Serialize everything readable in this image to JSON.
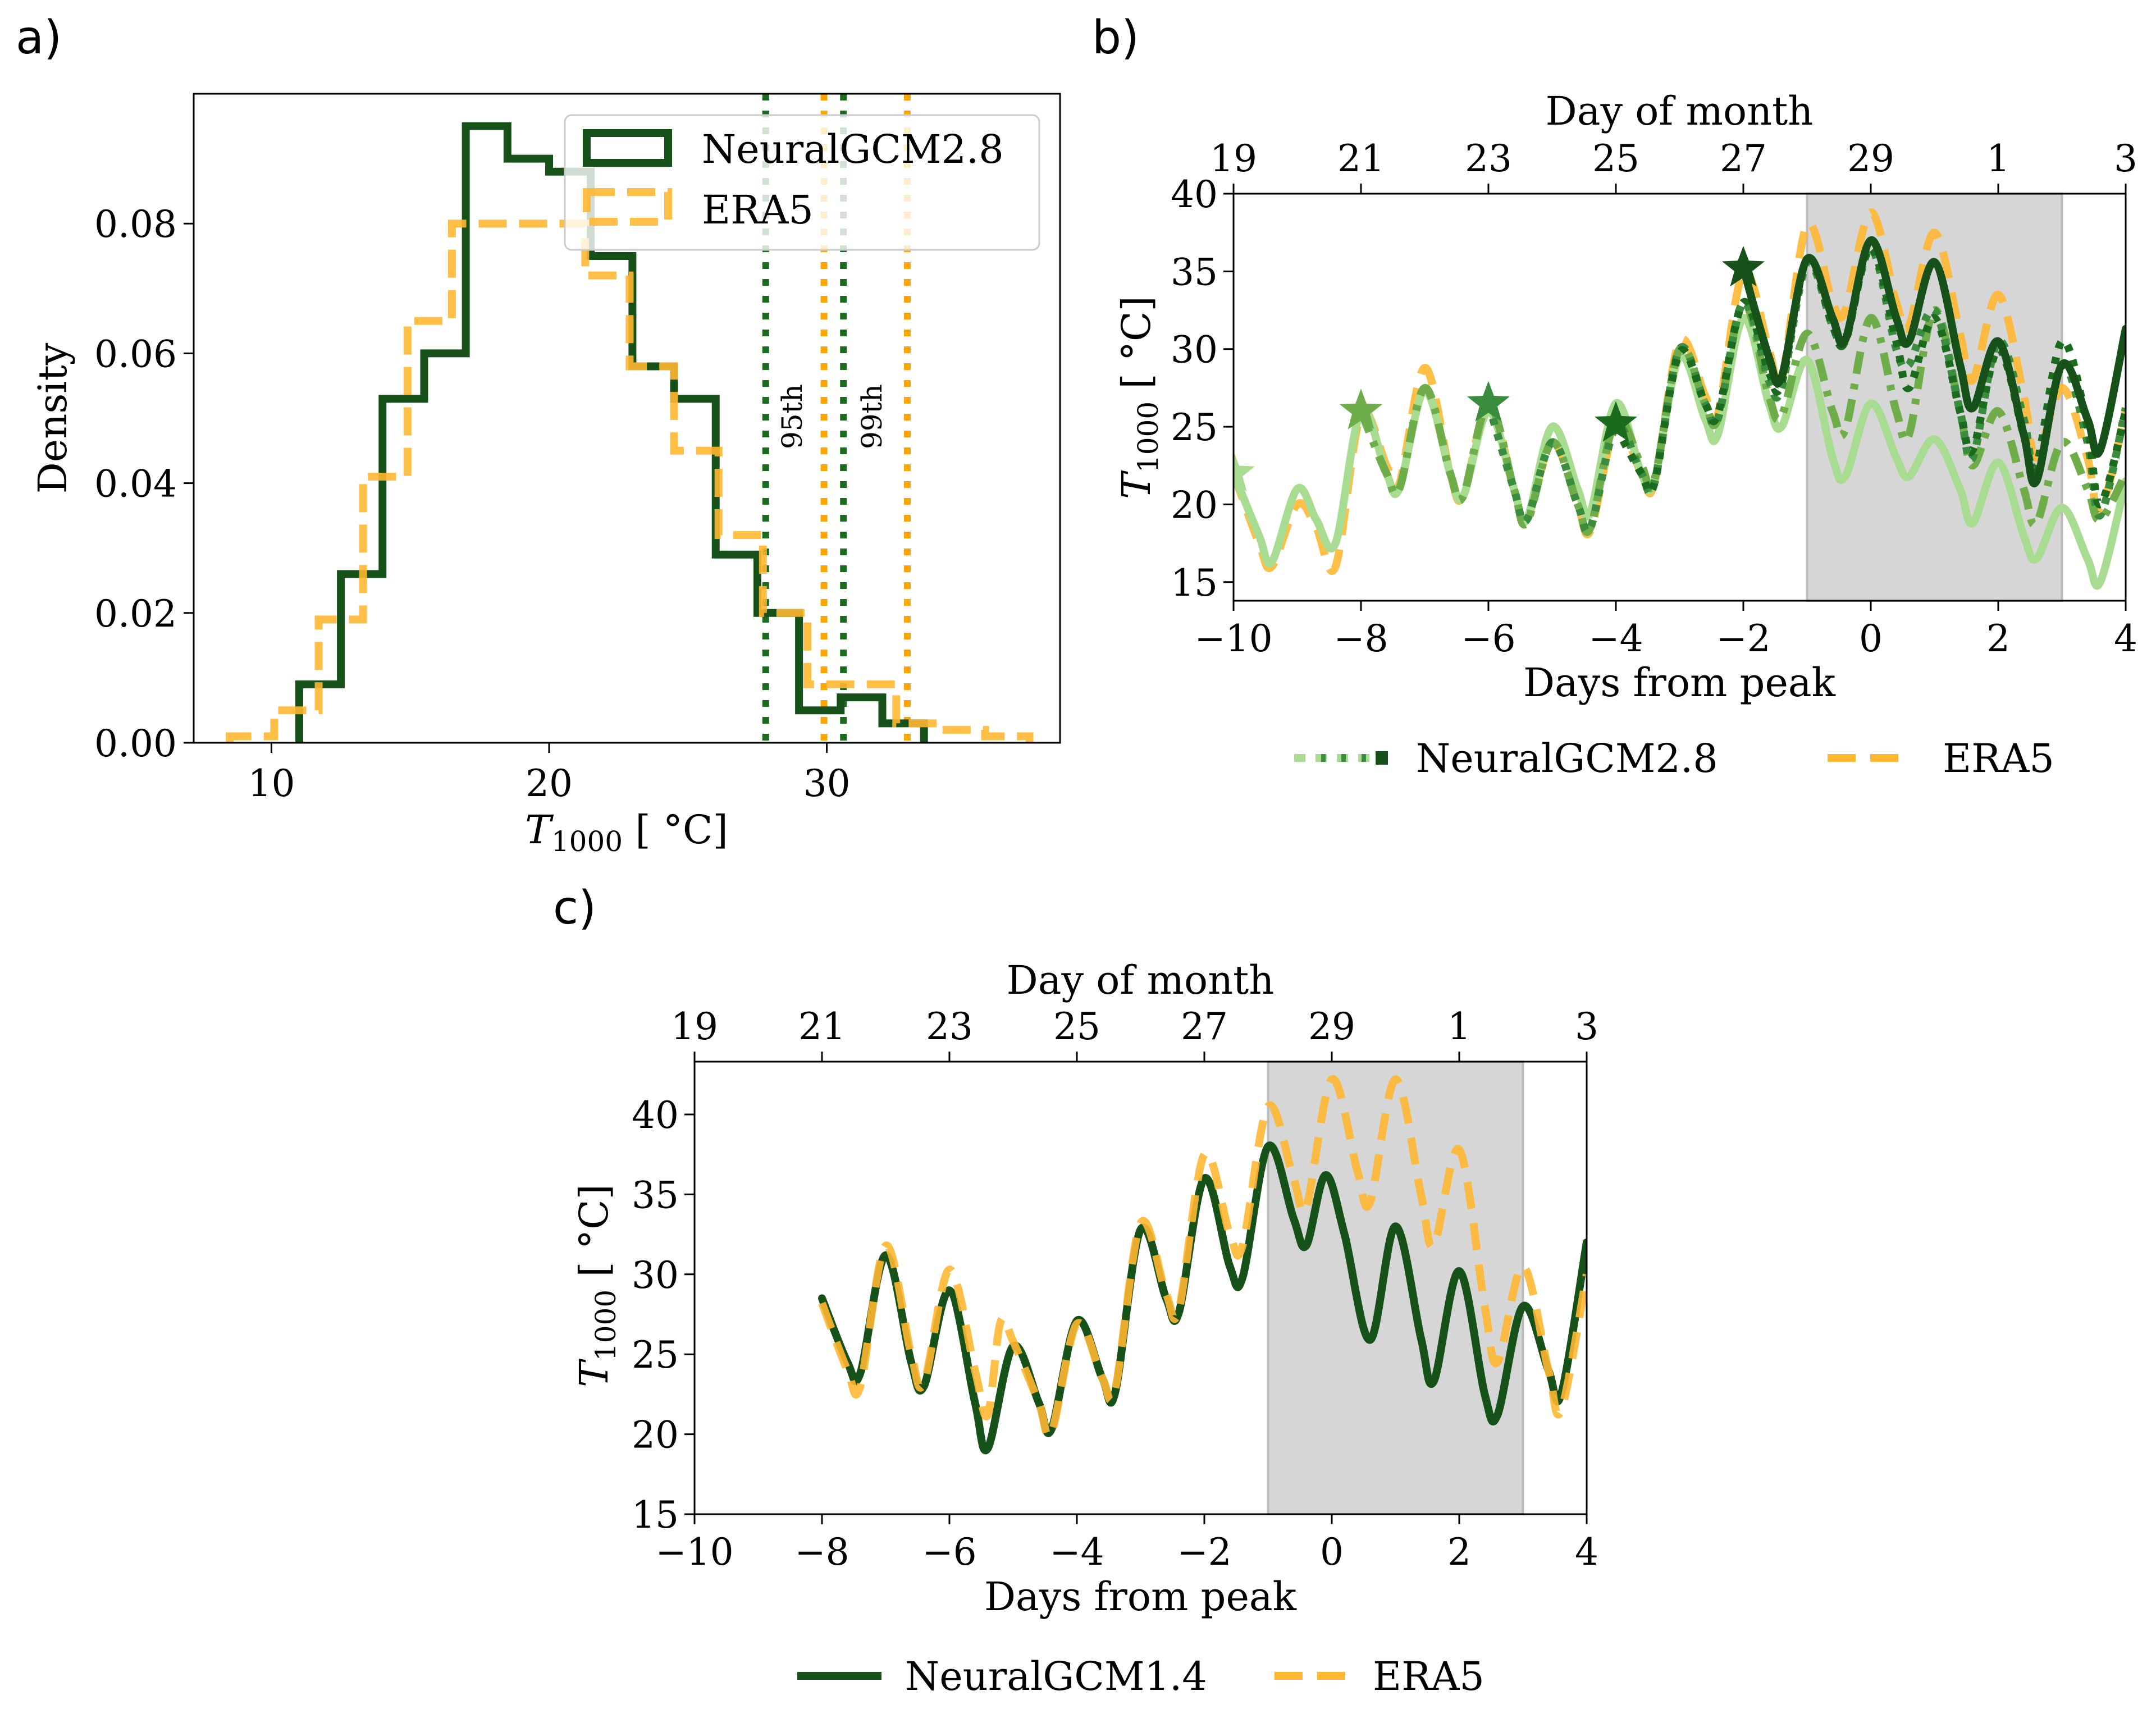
{
  "panel_labels": {
    "a": "a)",
    "b": "b)",
    "c": "c)"
  },
  "colors": {
    "neuralgcm_dark": "#16511a",
    "neuralgcm_mid": "#3a8d3e",
    "neuralgcm_med": "#6fad4a",
    "neuralgcm_light": "#a8dc90",
    "neuralgcm_dotted": "#1b6b1f",
    "era5": "#ffb732",
    "era5_pct": "#ffa500",
    "shade": "#d6d6d6"
  },
  "chart_data": [
    {
      "id": "a",
      "type": "bar",
      "subtype": "step-histogram",
      "title": "",
      "xlabel": "T1000 [°C]",
      "ylabel": "Density",
      "xlim": [
        7.2,
        38.4
      ],
      "ylim": [
        0,
        0.1
      ],
      "xticks": [
        10,
        20,
        30
      ],
      "yticks": [
        0.0,
        0.02,
        0.04,
        0.06,
        0.08
      ],
      "ytick_labels": [
        "0.00",
        "0.02",
        "0.04",
        "0.06",
        "0.08"
      ],
      "legend": {
        "placement": "top-right",
        "entries": [
          "NeuralGCM2.8",
          "ERA5"
        ]
      },
      "series": [
        {
          "name": "NeuralGCM2.8",
          "style": "solid",
          "bin_edges": [
            11.0,
            12.5,
            14.0,
            15.5,
            17.0,
            18.5,
            20.0,
            21.5,
            23.0,
            24.5,
            26.0,
            27.5,
            29.0,
            30.5,
            32.0,
            33.5
          ],
          "values": [
            0.009,
            0.026,
            0.053,
            0.06,
            0.095,
            0.09,
            0.088,
            0.075,
            0.058,
            0.053,
            0.029,
            0.02,
            0.005,
            0.007,
            0.003
          ]
        },
        {
          "name": "ERA5",
          "style": "dashed",
          "bin_edges": [
            8.5,
            10.1,
            11.7,
            13.3,
            14.9,
            16.5,
            18.1,
            19.7,
            21.3,
            22.9,
            24.5,
            26.1,
            27.7,
            29.3,
            30.9,
            32.5,
            34.1,
            35.7,
            37.3
          ],
          "values": [
            0.001,
            0.005,
            0.019,
            0.041,
            0.065,
            0.08,
            0.08,
            0.08,
            0.072,
            0.058,
            0.045,
            0.032,
            0.02,
            0.009,
            0.009,
            0.003,
            0.002,
            0.001
          ]
        }
      ],
      "percentile_lines": [
        {
          "series": "NeuralGCM2.8",
          "label": "95th",
          "x": 27.8
        },
        {
          "series": "NeuralGCM2.8",
          "label": "99th",
          "x": 30.6
        },
        {
          "series": "ERA5",
          "label": "95th",
          "x": 29.9
        },
        {
          "series": "ERA5",
          "label": "99th",
          "x": 32.9
        }
      ],
      "annotations": [
        "95th",
        "99th"
      ]
    },
    {
      "id": "b",
      "type": "line",
      "xlabel": "Days from peak",
      "ylabel": "T1000 [°C]",
      "top_xlabel": "Day of month",
      "xlim": [
        -10,
        4
      ],
      "ylim": [
        13.8,
        40
      ],
      "xticks": [
        -10,
        -8,
        -6,
        -4,
        -2,
        0,
        2,
        4
      ],
      "xtick_labels": [
        "−10",
        "−8",
        "−6",
        "−4",
        "−2",
        "0",
        "2",
        "4"
      ],
      "top_xticks": [
        -10,
        -8,
        -6,
        -4,
        -2,
        0,
        2,
        4
      ],
      "top_xtick_labels": [
        "19",
        "21",
        "23",
        "25",
        "27",
        "29",
        "1",
        "3"
      ],
      "yticks": [
        15,
        20,
        25,
        30,
        35,
        40
      ],
      "shaded_region": [
        -1,
        3
      ],
      "legend": {
        "placement": "bottom",
        "entries": [
          "NeuralGCM2.8",
          "ERA5"
        ]
      },
      "series": [
        {
          "name": "ERA5",
          "style": "dashed",
          "color_key": "era5",
          "x": [
            -10,
            -9.6,
            -9.4,
            -9.0,
            -8.7,
            -8.4,
            -8.0,
            -7.6,
            -7.4,
            -7.0,
            -6.6,
            -6.4,
            -6.0,
            -5.6,
            -5.4,
            -5.0,
            -4.6,
            -4.4,
            -4.0,
            -3.6,
            -3.4,
            -3.0,
            -2.6,
            -2.4,
            -2.0,
            -1.6,
            -1.4,
            -1.0,
            -0.6,
            -0.4,
            0.0,
            0.4,
            0.6,
            1.0,
            1.4,
            1.6,
            2.0,
            2.4,
            2.6,
            3.0,
            3.4,
            3.6,
            4.0
          ],
          "y": [
            22,
            17.5,
            16,
            20,
            18.5,
            16,
            25.8,
            22.5,
            21.3,
            28.8,
            22,
            20.5,
            26.5,
            21,
            19,
            24,
            20,
            18.3,
            25,
            22,
            21.3,
            30.5,
            27,
            25.8,
            35,
            30,
            28,
            38,
            33,
            32.5,
            38.8,
            33,
            31.5,
            37.5,
            31,
            28,
            33.5,
            27,
            23,
            27.5,
            23,
            19.5,
            26
          ]
        },
        {
          "name": "NeuralGCM2.8 member (light)",
          "style": "solid",
          "color_key": "neuralgcm_light",
          "x": [
            -10,
            -9.6,
            -9.4,
            -9.0,
            -8.7,
            -8.4,
            -8.0,
            -7.6,
            -7.4,
            -7.0,
            -6.6,
            -6.4,
            -6.0,
            -5.6,
            -5.4,
            -5.0,
            -4.6,
            -4.4,
            -4.0,
            -3.6,
            -3.4,
            -3.0,
            -2.6,
            -2.4,
            -2.0,
            -1.6,
            -1.4,
            -1.0,
            -0.6,
            -0.4,
            0.0,
            0.4,
            0.6,
            1.0,
            1.4,
            1.6,
            2.0,
            2.4,
            2.6,
            3.0,
            3.4,
            3.6,
            4.0
          ],
          "y": [
            22,
            18,
            16.3,
            21,
            19,
            17.5,
            26,
            22,
            21,
            27.3,
            22,
            20.5,
            26,
            21,
            19,
            25,
            21,
            19.5,
            26.5,
            22,
            21.5,
            29.5,
            25.5,
            24.5,
            32,
            26.5,
            25,
            29.3,
            23,
            21.8,
            26.5,
            23,
            21.8,
            24.2,
            21,
            18.8,
            22.7,
            18,
            16.5,
            19.8,
            16.5,
            15,
            21.5
          ]
        },
        {
          "name": "NeuralGCM2.8 member (medium dash-dot)",
          "style": "dashdot",
          "color_key": "neuralgcm_med",
          "x": [
            -8,
            -7.6,
            -7.4,
            -7.0,
            -6.6,
            -6.4,
            -6.0,
            -5.6,
            -5.4,
            -5.0,
            -4.6,
            -4.4,
            -4.0,
            -3.6,
            -3.4,
            -3.0,
            -2.6,
            -2.4,
            -2.0,
            -1.6,
            -1.4,
            -1.0,
            -0.6,
            -0.4,
            0.0,
            0.4,
            0.6,
            1.0,
            1.4,
            1.6,
            2.0,
            2.4,
            2.6,
            3.0,
            3.4,
            3.6,
            4.0
          ],
          "y": [
            26,
            22,
            21,
            27.5,
            22,
            20.5,
            26.5,
            21,
            18.8,
            24,
            20,
            18.5,
            25.5,
            22.5,
            21.5,
            30,
            26.5,
            25.5,
            33,
            27,
            25.7,
            31,
            26,
            24.8,
            32,
            26,
            24.5,
            32.5,
            26,
            22.5,
            26,
            21,
            18.8,
            24,
            21,
            19,
            22
          ]
        },
        {
          "name": "NeuralGCM2.8 member (mid dotted)",
          "style": "dotted",
          "color_key": "neuralgcm_mid",
          "x": [
            -6,
            -5.6,
            -5.4,
            -5.0,
            -4.6,
            -4.4,
            -4.0,
            -3.6,
            -3.4,
            -3.0,
            -2.6,
            -2.4,
            -2.0,
            -1.6,
            -1.4,
            -1.0,
            -0.6,
            -0.4,
            0.0,
            0.4,
            0.6,
            1.0,
            1.4,
            1.6,
            2.0,
            2.4,
            2.6,
            3.0,
            3.4,
            3.6,
            4.0
          ],
          "y": [
            26.5,
            21,
            19,
            24,
            20,
            18.5,
            25,
            22,
            21.3,
            30,
            26.5,
            25.5,
            33,
            28,
            27.5,
            35.5,
            31.5,
            30.5,
            36.5,
            30,
            29,
            32.5,
            26,
            23,
            30.5,
            25.5,
            22,
            29,
            24,
            19.3,
            26.2
          ]
        },
        {
          "name": "NeuralGCM2.8 member (dark dotted)",
          "style": "dotted",
          "color_key": "neuralgcm_dotted",
          "x": [
            -4,
            -3.6,
            -3.4,
            -3.0,
            -2.6,
            -2.4,
            -2.0,
            -1.6,
            -1.4,
            -1.0,
            -0.6,
            -0.4,
            0.0,
            0.4,
            0.6,
            1.0,
            1.4,
            1.6,
            2.0,
            2.4,
            2.6,
            3.0,
            3.4,
            3.6,
            4.0
          ],
          "y": [
            25,
            22,
            21.3,
            29.8,
            26.5,
            25.8,
            33,
            28.5,
            27.8,
            35.8,
            31.5,
            30.5,
            36.5,
            30.5,
            27.5,
            32,
            26,
            23.5,
            30,
            24.5,
            22.5,
            30.5,
            25,
            20,
            26
          ]
        },
        {
          "name": "NeuralGCM2.8 member (dark solid)",
          "style": "solid",
          "color_key": "neuralgcm_dark",
          "x": [
            -2,
            -1.6,
            -1.4,
            -1.0,
            -0.6,
            -0.4,
            0.0,
            0.4,
            0.6,
            1.0,
            1.4,
            1.6,
            2.0,
            2.4,
            2.6,
            3.0,
            3.4,
            3.6,
            4.0
          ],
          "y": [
            35.2,
            29.5,
            28.2,
            35.8,
            32,
            30.6,
            37,
            32,
            30.5,
            35.6,
            29,
            26.2,
            30.5,
            24.5,
            21.5,
            29,
            25.5,
            23.5,
            31.3
          ]
        }
      ],
      "markers": [
        {
          "type": "star",
          "x": -10,
          "y": 22,
          "color_key": "neuralgcm_light"
        },
        {
          "type": "star",
          "x": -8,
          "y": 26,
          "color_key": "neuralgcm_med"
        },
        {
          "type": "star",
          "x": -6,
          "y": 26.5,
          "color_key": "neuralgcm_mid"
        },
        {
          "type": "star",
          "x": -4,
          "y": 25.2,
          "color_key": "neuralgcm_dotted"
        },
        {
          "type": "star",
          "x": -2,
          "y": 35.2,
          "color_key": "neuralgcm_dark"
        }
      ]
    },
    {
      "id": "c",
      "type": "line",
      "xlabel": "Days from peak",
      "ylabel": "T1000 [°C]",
      "top_xlabel": "Day of month",
      "xlim": [
        -10,
        4
      ],
      "ylim": [
        15,
        43.3
      ],
      "xticks": [
        -10,
        -8,
        -6,
        -4,
        -2,
        0,
        2,
        4
      ],
      "xtick_labels": [
        "−10",
        "−8",
        "−6",
        "−4",
        "−2",
        "0",
        "2",
        "4"
      ],
      "top_xticks": [
        -10,
        -8,
        -6,
        -4,
        -2,
        0,
        2,
        4
      ],
      "top_xtick_labels": [
        "19",
        "21",
        "23",
        "25",
        "27",
        "29",
        "1",
        "3"
      ],
      "yticks": [
        15,
        20,
        25,
        30,
        35,
        40
      ],
      "shaded_region": [
        -1,
        3
      ],
      "legend": {
        "placement": "bottom",
        "entries": [
          "NeuralGCM1.4",
          "ERA5"
        ]
      },
      "series": [
        {
          "name": "NeuralGCM1.4",
          "style": "solid",
          "color_key": "neuralgcm_dark",
          "x": [
            -8,
            -7.6,
            -7.4,
            -7.0,
            -6.6,
            -6.4,
            -6.0,
            -5.6,
            -5.4,
            -5.0,
            -4.6,
            -4.4,
            -4.0,
            -3.6,
            -3.4,
            -3.0,
            -2.6,
            -2.4,
            -2.0,
            -1.6,
            -1.4,
            -1.0,
            -0.6,
            -0.4,
            -0.1,
            0.2,
            0.6,
            1.0,
            1.4,
            1.6,
            2.0,
            2.4,
            2.6,
            3.0,
            3.4,
            3.6,
            4.0
          ],
          "y": [
            28.5,
            24.5,
            23.8,
            31.2,
            24.5,
            23,
            29,
            22,
            19.1,
            25.5,
            22,
            20.3,
            27.1,
            23.5,
            22.6,
            32.8,
            28.5,
            27.6,
            36,
            30.5,
            29.8,
            38,
            33.5,
            31.8,
            36.2,
            32.5,
            25.9,
            33,
            26,
            23.3,
            30.2,
            22.5,
            21.2,
            28,
            24,
            22.5,
            32
          ]
        },
        {
          "name": "ERA5",
          "style": "dashed",
          "color_key": "era5",
          "x": [
            -8,
            -7.6,
            -7.4,
            -7.0,
            -6.6,
            -6.4,
            -6.0,
            -5.6,
            -5.4,
            -5.2,
            -5.0,
            -4.6,
            -4.4,
            -4.0,
            -3.6,
            -3.4,
            -3.0,
            -2.6,
            -2.4,
            -2.0,
            -1.6,
            -1.4,
            -1.0,
            -0.6,
            -0.4,
            0.0,
            0.4,
            0.6,
            1.0,
            1.4,
            1.6,
            2.0,
            2.4,
            2.6,
            3.0,
            3.4,
            3.6,
            4.0
          ],
          "y": [
            28.2,
            24,
            23,
            31.8,
            25,
            23.2,
            30.3,
            24,
            21.2,
            27,
            25.8,
            22,
            20.1,
            26.9,
            23.5,
            22.8,
            33.2,
            28.8,
            27.8,
            37.5,
            32.5,
            31.8,
            40.5,
            36,
            34.2,
            42.2,
            36.5,
            34.5,
            42.2,
            35,
            31.8,
            37.8,
            28,
            24.5,
            30.5,
            24,
            21.5,
            30
          ]
        }
      ]
    }
  ],
  "panel_b_legend": {
    "neuralgcm_label": "NeuralGCM2.8",
    "era5_label": "ERA5"
  },
  "panel_c_legend": {
    "neuralgcm_label": "NeuralGCM1.4",
    "era5_label": "ERA5"
  },
  "panel_a_legend": {
    "neuralgcm_label": "NeuralGCM2.8",
    "era5_label": "ERA5"
  },
  "texts": {
    "density": "Density",
    "t1000_base": "T",
    "t1000_sub": "1000",
    "t1000_unit": " [ °C]",
    "days_from_peak": "Days from peak",
    "day_of_month": "Day of month",
    "pct95": "95th",
    "pct99": "99th"
  }
}
